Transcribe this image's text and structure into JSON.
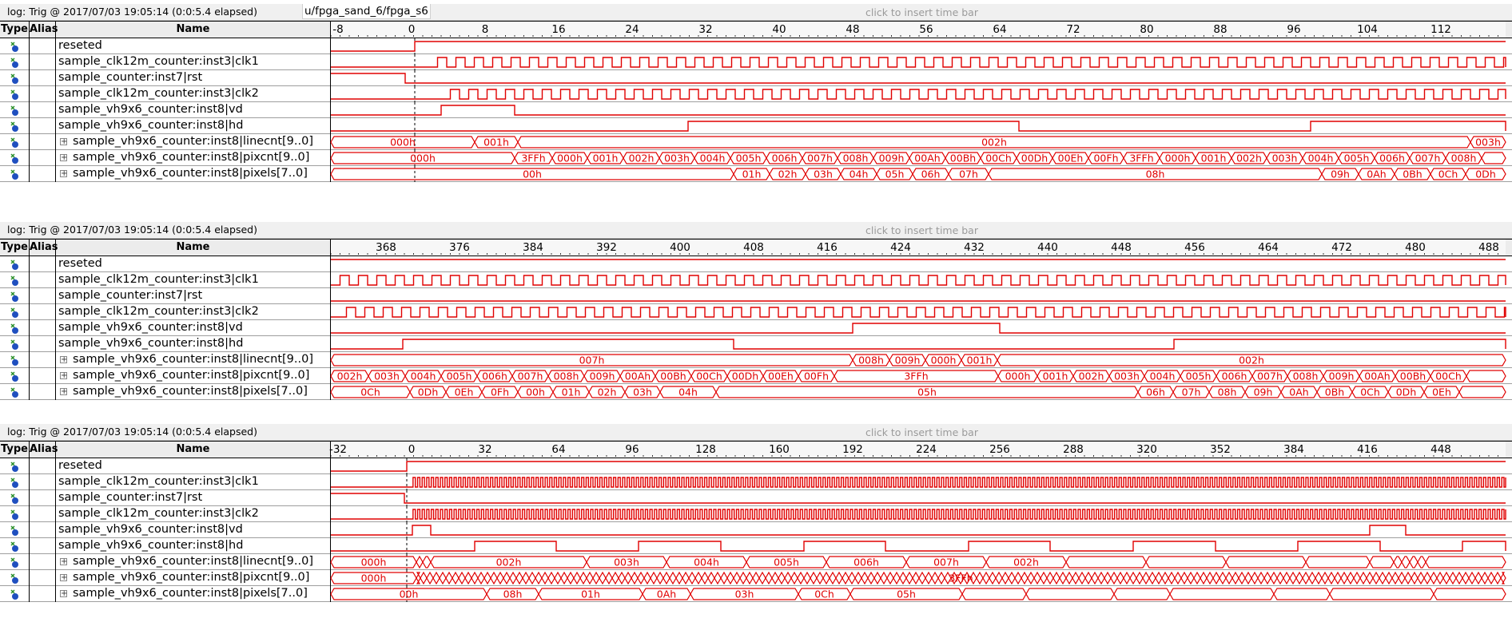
{
  "panels": [
    {
      "log_label": "log: Trig @ 2017/07/03 19:05:14 (0:0:5.4 elapsed)",
      "path_label": "u/fpga_sand_6/fpga_s6",
      "insert_bar": "click to insert time bar",
      "headers": {
        "type": "Type",
        "alias": "Alias",
        "name": "Name"
      },
      "ticks": [
        "-8",
        "0",
        "8",
        "16",
        "24",
        "32",
        "40",
        "48",
        "56",
        "64",
        "72",
        "80",
        "88",
        "96",
        "104",
        "112"
      ],
      "signals": [
        {
          "name": "reseted",
          "bus": false
        },
        {
          "name": "sample_clk12m_counter:inst3|clk1",
          "bus": false
        },
        {
          "name": "sample_counter:inst7|rst",
          "bus": false
        },
        {
          "name": "sample_clk12m_counter:inst3|clk2",
          "bus": false
        },
        {
          "name": "sample_vh9x6_counter:inst8|vd",
          "bus": false
        },
        {
          "name": "sample_vh9x6_counter:inst8|hd",
          "bus": false
        },
        {
          "name": "sample_vh9x6_counter:inst8|linecnt[9..0]",
          "bus": true,
          "values": [
            "000h",
            "001h",
            "002h",
            "003h"
          ]
        },
        {
          "name": "sample_vh9x6_counter:inst8|pixcnt[9..0]",
          "bus": true,
          "values": [
            "000h",
            "3FFh",
            "000h",
            "001h",
            "002h",
            "003h",
            "004h",
            "005h",
            "006h",
            "007h",
            "008h",
            "009h",
            "00Ah",
            "00Bh",
            "00Ch",
            "00Dh",
            "00Eh",
            "00Fh",
            "3FFh",
            "000h",
            "001h",
            "002h",
            "003h",
            "004h",
            "005h",
            "006h",
            "007h",
            "008h"
          ]
        },
        {
          "name": "sample_vh9x6_counter:inst8|pixels[7..0]",
          "bus": true,
          "values": [
            "00h",
            "01h",
            "02h",
            "03h",
            "04h",
            "05h",
            "06h",
            "07h",
            "08h",
            "09h",
            "0Ah",
            "0Bh",
            "0Ch",
            "0Dh"
          ]
        }
      ]
    },
    {
      "log_label": "log: Trig @ 2017/07/03 19:05:14 (0:0:5.4 elapsed)",
      "insert_bar": "click to insert time bar",
      "headers": {
        "type": "Type",
        "alias": "Alias",
        "name": "Name"
      },
      "ticks": [
        "368",
        "376",
        "384",
        "392",
        "400",
        "408",
        "416",
        "424",
        "432",
        "440",
        "448",
        "456",
        "464",
        "472",
        "480",
        "488"
      ],
      "signals": [
        {
          "name": "reseted",
          "bus": false
        },
        {
          "name": "sample_clk12m_counter:inst3|clk1",
          "bus": false
        },
        {
          "name": "sample_counter:inst7|rst",
          "bus": false
        },
        {
          "name": "sample_clk12m_counter:inst3|clk2",
          "bus": false
        },
        {
          "name": "sample_vh9x6_counter:inst8|vd",
          "bus": false
        },
        {
          "name": "sample_vh9x6_counter:inst8|hd",
          "bus": false
        },
        {
          "name": "sample_vh9x6_counter:inst8|linecnt[9..0]",
          "bus": true,
          "values": [
            "007h",
            "008h",
            "009h",
            "000h",
            "001h",
            "002h"
          ]
        },
        {
          "name": "sample_vh9x6_counter:inst8|pixcnt[9..0]",
          "bus": true,
          "values": [
            "002h",
            "003h",
            "004h",
            "005h",
            "006h",
            "007h",
            "008h",
            "009h",
            "00Ah",
            "00Bh",
            "00Ch",
            "00Dh",
            "00Eh",
            "00Fh",
            "3FFh",
            "000h",
            "001h",
            "002h",
            "003h",
            "004h",
            "005h",
            "006h",
            "007h",
            "008h",
            "009h",
            "00Ah",
            "00Bh",
            "00Ch"
          ]
        },
        {
          "name": "sample_vh9x6_counter:inst8|pixels[7..0]",
          "bus": true,
          "values": [
            "0Ch",
            "0Dh",
            "0Eh",
            "0Fh",
            "00h",
            "01h",
            "02h",
            "03h",
            "04h",
            "05h",
            "06h",
            "07h",
            "08h",
            "09h",
            "0Ah",
            "0Bh",
            "0Ch",
            "0Dh",
            "0Eh"
          ]
        }
      ]
    },
    {
      "log_label": "log: Trig @ 2017/07/03 19:05:14 (0:0:5.4 elapsed)",
      "insert_bar": "click to insert time bar",
      "headers": {
        "type": "Type",
        "alias": "Alias",
        "name": "Name"
      },
      "ticks": [
        "-32",
        "0",
        "32",
        "64",
        "96",
        "128",
        "160",
        "192",
        "224",
        "256",
        "288",
        "320",
        "352",
        "384",
        "416",
        "448"
      ],
      "signals": [
        {
          "name": "reseted",
          "bus": false
        },
        {
          "name": "sample_clk12m_counter:inst3|clk1",
          "bus": false
        },
        {
          "name": "sample_counter:inst7|rst",
          "bus": false
        },
        {
          "name": "sample_clk12m_counter:inst3|clk2",
          "bus": false
        },
        {
          "name": "sample_vh9x6_counter:inst8|vd",
          "bus": false
        },
        {
          "name": "sample_vh9x6_counter:inst8|hd",
          "bus": false
        },
        {
          "name": "sample_vh9x6_counter:inst8|linecnt[9..0]",
          "bus": true,
          "values": [
            "000h",
            "002h",
            "003h",
            "004h",
            "005h",
            "006h",
            "007h",
            "002h"
          ]
        },
        {
          "name": "sample_vh9x6_counter:inst8|pixcnt[9..0]",
          "bus": true,
          "values": [
            "000h",
            "3FFh"
          ]
        },
        {
          "name": "sample_vh9x6_counter:inst8|pixels[7..0]",
          "bus": true,
          "values": [
            "00h",
            "08h",
            "01h",
            "0Ah",
            "03h",
            "0Ch",
            "05h"
          ]
        }
      ]
    }
  ],
  "colors": {
    "wave": "#e00000",
    "grid": "#000000"
  }
}
